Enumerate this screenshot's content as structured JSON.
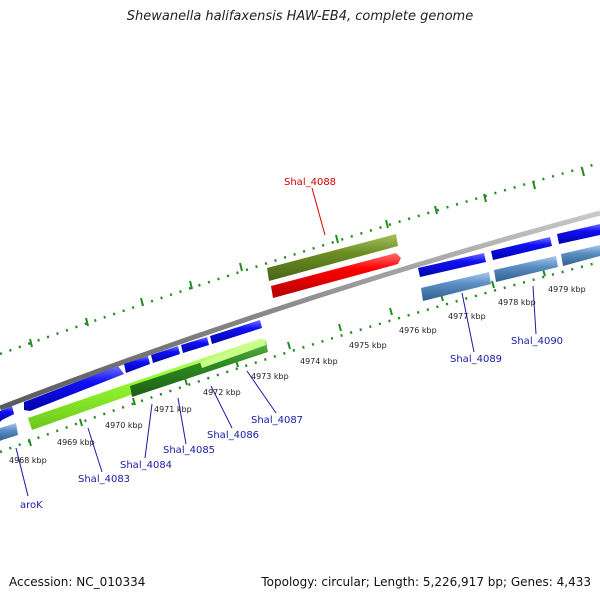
{
  "title": "Shewanella halifaxensis HAW-EB4, complete genome",
  "footer": {
    "accession": "Accession: NC_010334",
    "summary": "Topology: circular; Length: 5,226,917 bp; Genes: 4,433"
  },
  "kbp_labels": [
    "4968 kbp",
    "4969 kbp",
    "4970 kbp",
    "4971 kbp",
    "4972 kbp",
    "4973 kbp",
    "4974 kbp",
    "4975 kbp",
    "4976 kbp",
    "4977 kbp",
    "4978 kbp",
    "4979 kbp"
  ],
  "gene_labels": [
    "aroK",
    "Shal_4083",
    "Shal_4084",
    "Shal_4085",
    "Shal_4086",
    "Shal_4087",
    "Shal_4088",
    "Shal_4089",
    "Shal_4090"
  ],
  "colors": {
    "backbone": "#888888",
    "forward_cds": "#0000ee",
    "reverse_cds": "#4a7fb5",
    "highlight_gene": "#ee0000",
    "highlight_gene_feature": "#6b8e23",
    "feature_light": "#99ff33",
    "feature_dark": "#2e8b22",
    "ticks": "#228b22",
    "highlight_label": "#d10000",
    "label": "#1a1aa6"
  }
}
